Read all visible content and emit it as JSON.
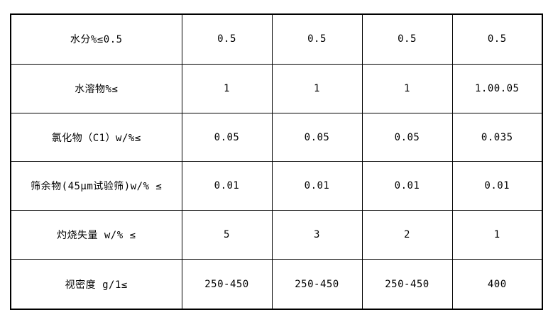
{
  "table": {
    "border_color": "#000000",
    "background_color": "#ffffff",
    "text_color": "#000000",
    "columns": 5,
    "rows": [
      {
        "label": "水分%≤0.5",
        "values": [
          "0.5",
          "0.5",
          "0.5",
          "0.5"
        ]
      },
      {
        "label": "水溶物%≤",
        "values": [
          "1",
          "1",
          "1",
          "1.00.05"
        ]
      },
      {
        "label": "氯化物（C1）w/%≤",
        "values": [
          "0.05",
          "0.05",
          "0.05",
          "0.035"
        ]
      },
      {
        "label": "筛余物(45μm试验筛)w/% ≤",
        "values": [
          "0.01",
          "0.01",
          "0.01",
          "0.01"
        ]
      },
      {
        "label": "灼烧失量 w/% ≤",
        "values": [
          "5",
          "3",
          "2",
          "1"
        ]
      },
      {
        "label": "视密度 g/1≤",
        "values": [
          "250-450",
          "250-450",
          "250-450",
          "400"
        ]
      }
    ]
  }
}
